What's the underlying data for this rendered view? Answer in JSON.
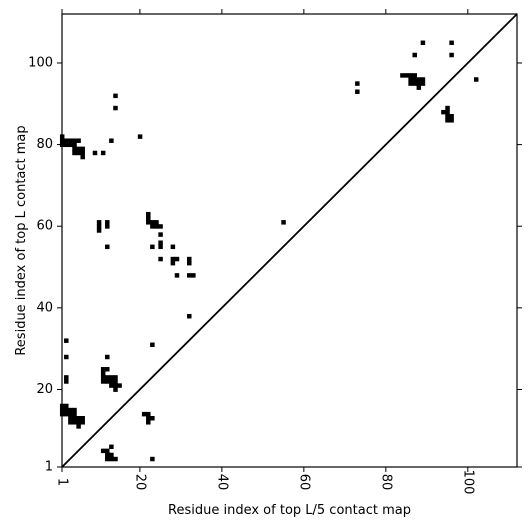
{
  "chart_data": {
    "type": "heatmap",
    "xlabel": "Residue index of top L/5 contact map",
    "ylabel": "Residue index of top L contact map",
    "xlim": [
      1,
      112
    ],
    "ylim": [
      1,
      112
    ],
    "xticks": [
      1,
      20,
      40,
      60,
      80,
      100
    ],
    "yticks": [
      1,
      20,
      40,
      60,
      80,
      100
    ],
    "diagonal": true,
    "grid": false,
    "cell_color": "#000000",
    "cells": [
      [
        1,
        82
      ],
      [
        1,
        81
      ],
      [
        1,
        80
      ],
      [
        2,
        81
      ],
      [
        2,
        80
      ],
      [
        3,
        81
      ],
      [
        3,
        80
      ],
      [
        4,
        81
      ],
      [
        4,
        80
      ],
      [
        4,
        79
      ],
      [
        4,
        78
      ],
      [
        5,
        81
      ],
      [
        5,
        79
      ],
      [
        5,
        78
      ],
      [
        6,
        79
      ],
      [
        6,
        78
      ],
      [
        6,
        77
      ],
      [
        9,
        78
      ],
      [
        11,
        78
      ],
      [
        13,
        81
      ],
      [
        14,
        92
      ],
      [
        14,
        89
      ],
      [
        20,
        82
      ],
      [
        10,
        61
      ],
      [
        10,
        60
      ],
      [
        10,
        59
      ],
      [
        12,
        61
      ],
      [
        12,
        60
      ],
      [
        12,
        55
      ],
      [
        22,
        63
      ],
      [
        22,
        62
      ],
      [
        22,
        61
      ],
      [
        23,
        61
      ],
      [
        23,
        60
      ],
      [
        23,
        55
      ],
      [
        24,
        61
      ],
      [
        24,
        60
      ],
      [
        25,
        60
      ],
      [
        25,
        58
      ],
      [
        25,
        56
      ],
      [
        25,
        55
      ],
      [
        25,
        52
      ],
      [
        28,
        55
      ],
      [
        28,
        52
      ],
      [
        28,
        51
      ],
      [
        29,
        52
      ],
      [
        29,
        48
      ],
      [
        32,
        52
      ],
      [
        32,
        51
      ],
      [
        32,
        48
      ],
      [
        33,
        48
      ],
      [
        32,
        38
      ],
      [
        23,
        31
      ],
      [
        55,
        61
      ],
      [
        73,
        95
      ],
      [
        73,
        93
      ],
      [
        84,
        97
      ],
      [
        85,
        97
      ],
      [
        86,
        97
      ],
      [
        86,
        96
      ],
      [
        86,
        95
      ],
      [
        87,
        102
      ],
      [
        87,
        97
      ],
      [
        87,
        96
      ],
      [
        87,
        95
      ],
      [
        88,
        96
      ],
      [
        88,
        95
      ],
      [
        88,
        94
      ],
      [
        89,
        105
      ],
      [
        89,
        96
      ],
      [
        89,
        95
      ],
      [
        95,
        89
      ],
      [
        95,
        88
      ],
      [
        95,
        87
      ],
      [
        95,
        86
      ],
      [
        96,
        105
      ],
      [
        96,
        102
      ],
      [
        96,
        87
      ],
      [
        96,
        86
      ],
      [
        94,
        88
      ],
      [
        102,
        96
      ],
      [
        2,
        32
      ],
      [
        2,
        28
      ],
      [
        2,
        23
      ],
      [
        2,
        22
      ],
      [
        11,
        25
      ],
      [
        11,
        24
      ],
      [
        11,
        23
      ],
      [
        11,
        22
      ],
      [
        12,
        28
      ],
      [
        12,
        25
      ],
      [
        12,
        23
      ],
      [
        12,
        22
      ],
      [
        13,
        23
      ],
      [
        13,
        22
      ],
      [
        13,
        21
      ],
      [
        14,
        23
      ],
      [
        14,
        22
      ],
      [
        14,
        21
      ],
      [
        14,
        20
      ],
      [
        15,
        21
      ],
      [
        1,
        16
      ],
      [
        1,
        15
      ],
      [
        1,
        14
      ],
      [
        2,
        16
      ],
      [
        2,
        15
      ],
      [
        2,
        14
      ],
      [
        3,
        15
      ],
      [
        3,
        14
      ],
      [
        3,
        13
      ],
      [
        3,
        12
      ],
      [
        4,
        15
      ],
      [
        4,
        14
      ],
      [
        4,
        13
      ],
      [
        4,
        12
      ],
      [
        5,
        13
      ],
      [
        5,
        12
      ],
      [
        5,
        11
      ],
      [
        6,
        13
      ],
      [
        6,
        12
      ],
      [
        21,
        14
      ],
      [
        22,
        14
      ],
      [
        22,
        13
      ],
      [
        22,
        12
      ],
      [
        23,
        13
      ],
      [
        11,
        5
      ],
      [
        12,
        5
      ],
      [
        12,
        4
      ],
      [
        12,
        3
      ],
      [
        13,
        6
      ],
      [
        13,
        4
      ],
      [
        13,
        3
      ],
      [
        14,
        3
      ],
      [
        23,
        3
      ]
    ]
  }
}
